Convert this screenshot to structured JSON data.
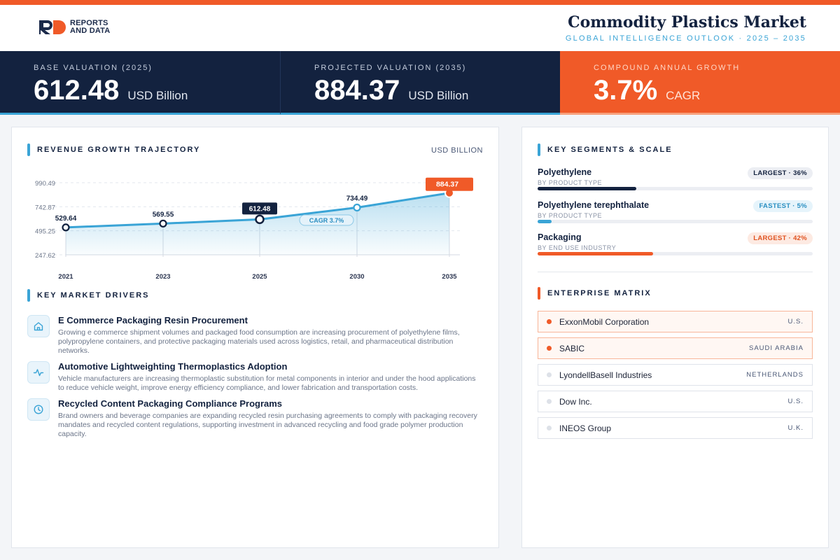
{
  "colors": {
    "accent_orange": "#f05a28",
    "navy": "#13223f",
    "blue": "#3aa4d6"
  },
  "brand": {
    "logo_line1": "REPORTS",
    "logo_line2": "AND DATA",
    "logo_mark": "RD"
  },
  "header": {
    "title": "Commodity Plastics Market",
    "subtitle": "GLOBAL INTELLIGENCE OUTLOOK  ·  2025 – 2035"
  },
  "kpis": [
    {
      "label": "BASE VALUATION (2025)",
      "value": "612.48",
      "unit": "USD Billion"
    },
    {
      "label": "PROJECTED VALUATION (2035)",
      "value": "884.37",
      "unit": "USD Billion"
    },
    {
      "label": "COMPOUND ANNUAL GROWTH",
      "value": "3.7%",
      "unit": "CAGR"
    }
  ],
  "chart_section": {
    "title": "REVENUE GROWTH TRAJECTORY",
    "unit": "USD BILLION"
  },
  "chart_data": {
    "type": "area",
    "categories": [
      "2021",
      "2023",
      "2025",
      "2030",
      "2035"
    ],
    "values": [
      529.64,
      569.55,
      612.48,
      734.49,
      884.37
    ],
    "value_labels": [
      "529.64",
      "569.55",
      "612.48",
      "734.49",
      "884.37"
    ],
    "y_ticks": [
      "990.49",
      "742.87",
      "495.25",
      "247.62"
    ],
    "y_tick_values": [
      990.49,
      742.87,
      495.25,
      247.62
    ],
    "ylim": [
      247.62,
      990.49
    ],
    "annotation": "CAGR 3.7%",
    "highlight_base": "2025",
    "highlight_end": "2035",
    "grid": true
  },
  "drivers_section": {
    "title": "KEY MARKET DRIVERS"
  },
  "drivers": [
    {
      "icon": "home-icon",
      "title": "E Commerce Packaging Resin Procurement",
      "desc": "Growing e commerce shipment volumes and packaged food consumption are increasing procurement of polyethylene films, polypropylene containers, and protective packaging materials used across logistics, retail, and pharmaceutical distribution networks."
    },
    {
      "icon": "activity-icon",
      "title": "Automotive Lightweighting Thermoplastics Adoption",
      "desc": "Vehicle manufacturers are increasing thermoplastic substitution for metal components in interior and under the hood applications to reduce vehicle weight, improve energy efficiency compliance, and lower fabrication and transportation costs."
    },
    {
      "icon": "clock-icon",
      "title": "Recycled Content Packaging Compliance Programs",
      "desc": "Brand owners and beverage companies are expanding recycled resin purchasing agreements to comply with packaging recovery mandates and recycled content regulations, supporting investment in advanced recycling and food grade polymer production capacity."
    }
  ],
  "segments_section": {
    "title": "KEY SEGMENTS & SCALE"
  },
  "segments": [
    {
      "name": "Polyethylene",
      "category": "BY PRODUCT TYPE",
      "badge": "LARGEST · 36%",
      "share": 36,
      "color": "#13223f",
      "badge_bg": "#eceef3",
      "badge_color": "#13223f"
    },
    {
      "name": "Polyethylene terephthalate",
      "category": "BY PRODUCT TYPE",
      "badge": "FASTEST · 5%",
      "share": 5,
      "color": "#3aa4d6",
      "badge_bg": "#e6f4fb",
      "badge_color": "#2a8fc2"
    },
    {
      "name": "Packaging",
      "category": "BY END USE INDUSTRY",
      "badge": "LARGEST · 42%",
      "share": 42,
      "color": "#f05a28",
      "badge_bg": "#fdeae2",
      "badge_color": "#e0521f"
    }
  ],
  "enterprise_section": {
    "title": "ENTERPRISE MATRIX"
  },
  "enterprises": [
    {
      "name": "ExxonMobil Corporation",
      "country": "U.S.",
      "highlight": true
    },
    {
      "name": "SABIC",
      "country": "SAUDI ARABIA",
      "highlight": true
    },
    {
      "name": "LyondellBasell Industries",
      "country": "NETHERLANDS",
      "highlight": false
    },
    {
      "name": "Dow Inc.",
      "country": "U.S.",
      "highlight": false
    },
    {
      "name": "INEOS Group",
      "country": "U.K.",
      "highlight": false
    }
  ]
}
